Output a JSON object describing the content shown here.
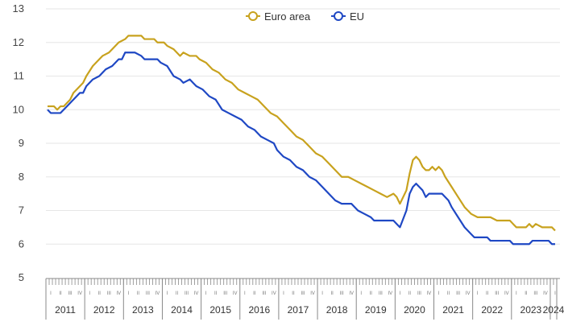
{
  "colors": {
    "grid": "#e6e6e6",
    "axis": "#888888",
    "euro_area": "#c8a21e",
    "eu": "#1f48c4"
  },
  "legend": {
    "placement": "top-center",
    "items": [
      {
        "label": "Euro area",
        "color": "#c8a21e"
      },
      {
        "label": "EU",
        "color": "#1f48c4"
      }
    ]
  },
  "chart_data": {
    "type": "line",
    "title": "",
    "xlabel": "",
    "ylabel": "",
    "ylim": [
      5,
      13
    ],
    "yticks": [
      5,
      6,
      7,
      8,
      9,
      10,
      11,
      12,
      13
    ],
    "grid": true,
    "x_axis": {
      "unit": "month",
      "start": "2011-01",
      "end": "2024-02",
      "years": [
        "2011",
        "2012",
        "2013",
        "2014",
        "2015",
        "2016",
        "2017",
        "2018",
        "2019",
        "2020",
        "2021",
        "2022",
        "2023",
        "2024"
      ],
      "quarter_labels": [
        "I",
        "II",
        "III",
        "IV"
      ]
    },
    "series": [
      {
        "name": "Euro area",
        "color": "#c8a21e",
        "points": [
          [
            "2011-01",
            10.1
          ],
          [
            "2011-03",
            10.1
          ],
          [
            "2011-04",
            10.0
          ],
          [
            "2011-05",
            10.1
          ],
          [
            "2011-06",
            10.1
          ],
          [
            "2011-08",
            10.3
          ],
          [
            "2011-09",
            10.5
          ],
          [
            "2011-10",
            10.6
          ],
          [
            "2011-12",
            10.8
          ],
          [
            "2012-01",
            11.0
          ],
          [
            "2012-03",
            11.3
          ],
          [
            "2012-05",
            11.5
          ],
          [
            "2012-06",
            11.6
          ],
          [
            "2012-08",
            11.7
          ],
          [
            "2012-09",
            11.8
          ],
          [
            "2012-11",
            12.0
          ],
          [
            "2013-01",
            12.1
          ],
          [
            "2013-02",
            12.2
          ],
          [
            "2013-06",
            12.2
          ],
          [
            "2013-07",
            12.1
          ],
          [
            "2013-09",
            12.1
          ],
          [
            "2013-10",
            12.1
          ],
          [
            "2013-11",
            12.0
          ],
          [
            "2014-01",
            12.0
          ],
          [
            "2014-02",
            11.9
          ],
          [
            "2014-04",
            11.8
          ],
          [
            "2014-06",
            11.6
          ],
          [
            "2014-07",
            11.7
          ],
          [
            "2014-09",
            11.6
          ],
          [
            "2014-11",
            11.6
          ],
          [
            "2014-12",
            11.5
          ],
          [
            "2015-02",
            11.4
          ],
          [
            "2015-04",
            11.2
          ],
          [
            "2015-06",
            11.1
          ],
          [
            "2015-08",
            10.9
          ],
          [
            "2015-10",
            10.8
          ],
          [
            "2015-12",
            10.6
          ],
          [
            "2016-02",
            10.5
          ],
          [
            "2016-04",
            10.4
          ],
          [
            "2016-06",
            10.3
          ],
          [
            "2016-08",
            10.1
          ],
          [
            "2016-10",
            9.9
          ],
          [
            "2016-12",
            9.8
          ],
          [
            "2017-02",
            9.6
          ],
          [
            "2017-04",
            9.4
          ],
          [
            "2017-06",
            9.2
          ],
          [
            "2017-08",
            9.1
          ],
          [
            "2017-10",
            8.9
          ],
          [
            "2017-12",
            8.7
          ],
          [
            "2018-02",
            8.6
          ],
          [
            "2018-04",
            8.4
          ],
          [
            "2018-06",
            8.2
          ],
          [
            "2018-08",
            8.0
          ],
          [
            "2018-10",
            8.0
          ],
          [
            "2018-12",
            7.9
          ],
          [
            "2019-02",
            7.8
          ],
          [
            "2019-04",
            7.7
          ],
          [
            "2019-06",
            7.6
          ],
          [
            "2019-08",
            7.5
          ],
          [
            "2019-10",
            7.4
          ],
          [
            "2019-12",
            7.5
          ],
          [
            "2020-01",
            7.4
          ],
          [
            "2020-02",
            7.2
          ],
          [
            "2020-04",
            7.6
          ],
          [
            "2020-05",
            8.1
          ],
          [
            "2020-06",
            8.5
          ],
          [
            "2020-07",
            8.6
          ],
          [
            "2020-08",
            8.5
          ],
          [
            "2020-09",
            8.3
          ],
          [
            "2020-10",
            8.2
          ],
          [
            "2020-11",
            8.2
          ],
          [
            "2020-12",
            8.3
          ],
          [
            "2021-01",
            8.2
          ],
          [
            "2021-02",
            8.3
          ],
          [
            "2021-03",
            8.2
          ],
          [
            "2021-04",
            8.0
          ],
          [
            "2021-06",
            7.7
          ],
          [
            "2021-08",
            7.4
          ],
          [
            "2021-10",
            7.1
          ],
          [
            "2021-12",
            6.9
          ],
          [
            "2022-02",
            6.8
          ],
          [
            "2022-06",
            6.8
          ],
          [
            "2022-08",
            6.7
          ],
          [
            "2022-12",
            6.7
          ],
          [
            "2023-01",
            6.6
          ],
          [
            "2023-02",
            6.5
          ],
          [
            "2023-05",
            6.5
          ],
          [
            "2023-06",
            6.6
          ],
          [
            "2023-07",
            6.5
          ],
          [
            "2023-08",
            6.6
          ],
          [
            "2023-10",
            6.5
          ],
          [
            "2024-01",
            6.5
          ],
          [
            "2024-02",
            6.4
          ]
        ]
      },
      {
        "name": "EU",
        "color": "#1f48c4",
        "points": [
          [
            "2011-01",
            10.0
          ],
          [
            "2011-02",
            9.9
          ],
          [
            "2011-05",
            9.9
          ],
          [
            "2011-07",
            10.1
          ],
          [
            "2011-09",
            10.3
          ],
          [
            "2011-11",
            10.5
          ],
          [
            "2011-12",
            10.5
          ],
          [
            "2012-01",
            10.7
          ],
          [
            "2012-03",
            10.9
          ],
          [
            "2012-05",
            11.0
          ],
          [
            "2012-07",
            11.2
          ],
          [
            "2012-09",
            11.3
          ],
          [
            "2012-11",
            11.5
          ],
          [
            "2012-12",
            11.5
          ],
          [
            "2013-01",
            11.7
          ],
          [
            "2013-04",
            11.7
          ],
          [
            "2013-06",
            11.6
          ],
          [
            "2013-07",
            11.5
          ],
          [
            "2013-11",
            11.5
          ],
          [
            "2013-12",
            11.4
          ],
          [
            "2014-02",
            11.3
          ],
          [
            "2014-04",
            11.0
          ],
          [
            "2014-06",
            10.9
          ],
          [
            "2014-07",
            10.8
          ],
          [
            "2014-09",
            10.9
          ],
          [
            "2014-10",
            10.8
          ],
          [
            "2014-11",
            10.7
          ],
          [
            "2015-01",
            10.6
          ],
          [
            "2015-03",
            10.4
          ],
          [
            "2015-05",
            10.3
          ],
          [
            "2015-07",
            10.0
          ],
          [
            "2015-09",
            9.9
          ],
          [
            "2015-11",
            9.8
          ],
          [
            "2016-01",
            9.7
          ],
          [
            "2016-03",
            9.5
          ],
          [
            "2016-05",
            9.4
          ],
          [
            "2016-07",
            9.2
          ],
          [
            "2016-09",
            9.1
          ],
          [
            "2016-11",
            9.0
          ],
          [
            "2016-12",
            8.8
          ],
          [
            "2017-02",
            8.6
          ],
          [
            "2017-04",
            8.5
          ],
          [
            "2017-06",
            8.3
          ],
          [
            "2017-08",
            8.2
          ],
          [
            "2017-10",
            8.0
          ],
          [
            "2017-12",
            7.9
          ],
          [
            "2018-02",
            7.7
          ],
          [
            "2018-04",
            7.5
          ],
          [
            "2018-06",
            7.3
          ],
          [
            "2018-08",
            7.2
          ],
          [
            "2018-11",
            7.2
          ],
          [
            "2019-01",
            7.0
          ],
          [
            "2019-03",
            6.9
          ],
          [
            "2019-05",
            6.8
          ],
          [
            "2019-06",
            6.7
          ],
          [
            "2019-12",
            6.7
          ],
          [
            "2020-01",
            6.6
          ],
          [
            "2020-02",
            6.5
          ],
          [
            "2020-04",
            7.0
          ],
          [
            "2020-05",
            7.5
          ],
          [
            "2020-06",
            7.7
          ],
          [
            "2020-07",
            7.8
          ],
          [
            "2020-08",
            7.7
          ],
          [
            "2020-09",
            7.6
          ],
          [
            "2020-10",
            7.4
          ],
          [
            "2020-11",
            7.5
          ],
          [
            "2021-03",
            7.5
          ],
          [
            "2021-05",
            7.3
          ],
          [
            "2021-06",
            7.1
          ],
          [
            "2021-08",
            6.8
          ],
          [
            "2021-10",
            6.5
          ],
          [
            "2021-12",
            6.3
          ],
          [
            "2022-01",
            6.2
          ],
          [
            "2022-05",
            6.2
          ],
          [
            "2022-06",
            6.1
          ],
          [
            "2022-12",
            6.1
          ],
          [
            "2023-01",
            6.0
          ],
          [
            "2023-06",
            6.0
          ],
          [
            "2023-07",
            6.1
          ],
          [
            "2023-12",
            6.1
          ],
          [
            "2024-01",
            6.0
          ],
          [
            "2024-02",
            6.0
          ]
        ]
      }
    ]
  }
}
